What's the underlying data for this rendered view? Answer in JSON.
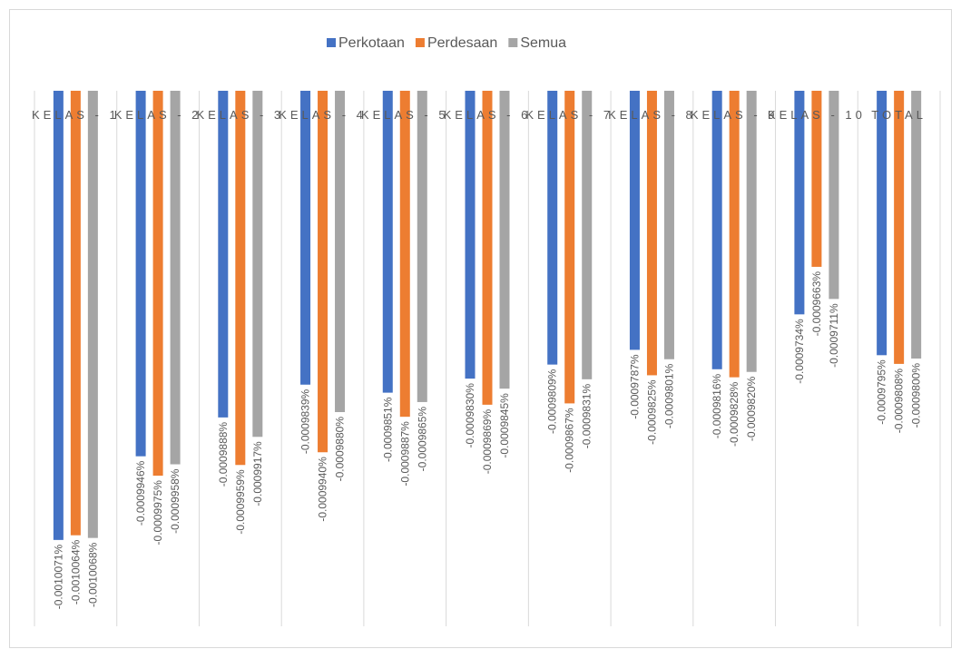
{
  "chart_data": {
    "type": "bar",
    "categories": [
      "KELAS - 1",
      "KELAS - 2",
      "KELAS - 3",
      "KELAS - 4",
      "KELAS - 5",
      "KELAS - 6",
      "KELAS - 7",
      "KELAS - 8",
      "KELAS - 9",
      "KELAS - 10",
      "TOTAL"
    ],
    "series": [
      {
        "name": "Perkotaan",
        "color": "#4472c4",
        "values": [
          -0.0010071,
          -0.0009946,
          -0.0009888,
          -0.0009839,
          -0.0009851,
          -0.000983,
          -0.0009809,
          -0.0009787,
          -0.0009816,
          -0.0009734,
          -0.0009795
        ],
        "value_labels": [
          "-0.0010071%",
          "-0.0009946%",
          "-0.0009888%",
          "-0.0009839%",
          "-0.0009851%",
          "-0.0009830%",
          "-0.0009809%",
          "-0.0009787%",
          "-0.0009816%",
          "-0.0009734%",
          "-0.0009795%"
        ]
      },
      {
        "name": "Perdesaan",
        "color": "#ed7d31",
        "values": [
          -0.0010064,
          -0.0009975,
          -0.0009959,
          -0.000994,
          -0.0009887,
          -0.0009869,
          -0.0009867,
          -0.0009825,
          -0.0009828,
          -0.0009663,
          -0.0009808
        ],
        "value_labels": [
          "-0.0010064%",
          "-0.0009975%",
          "-0.0009959%",
          "-0.0009940%",
          "-0.0009887%",
          "-0.0009869%",
          "-0.0009867%",
          "-0.0009825%",
          "-0.0009828%",
          "-0.0009663%",
          "-0.0009808%"
        ]
      },
      {
        "name": "Semua",
        "color": "#a5a5a5",
        "values": [
          -0.0010068,
          -0.0009958,
          -0.0009917,
          -0.000988,
          -0.0009865,
          -0.0009845,
          -0.0009831,
          -0.0009801,
          -0.000982,
          -0.0009711,
          -0.00098
        ],
        "value_labels": [
          "-0.0010068%",
          "-0.0009958%",
          "-0.0009917%",
          "-0.0009880%",
          "-0.0009865%",
          "-0.0009845%",
          "-0.0009831%",
          "-0.0009801%",
          "-0.0009820%",
          "-0.0009711%",
          "-0.0009800%"
        ]
      }
    ],
    "ylim": [
      -0.00102,
      -0.00094
    ],
    "legend": "top"
  }
}
